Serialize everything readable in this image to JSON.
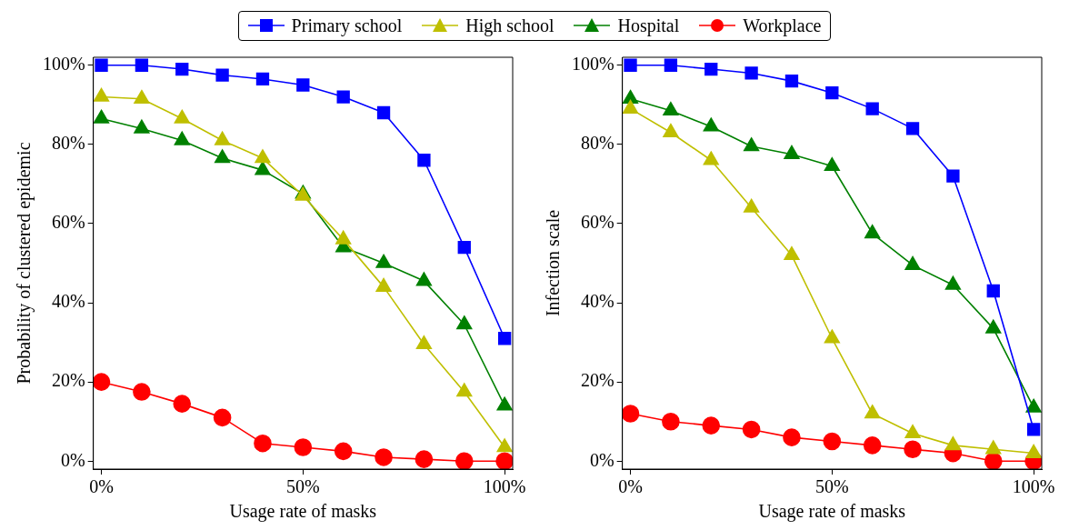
{
  "chart_data": [
    {
      "type": "line",
      "xlabel": "Usage rate of masks",
      "ylabel": "Probability of clustered epidemic",
      "x": [
        0,
        10,
        20,
        30,
        40,
        50,
        60,
        70,
        80,
        90,
        100
      ],
      "xlim": [
        -2,
        102
      ],
      "ylim": [
        -2,
        102
      ],
      "xticks": [
        {
          "value": 0,
          "label": "0%"
        },
        {
          "value": 50,
          "label": "50%"
        },
        {
          "value": 100,
          "label": "100%"
        }
      ],
      "yticks": [
        {
          "value": 0,
          "label": "0%"
        },
        {
          "value": 20,
          "label": "20%"
        },
        {
          "value": 40,
          "label": "40%"
        },
        {
          "value": 60,
          "label": "60%"
        },
        {
          "value": 80,
          "label": "80%"
        },
        {
          "value": 100,
          "label": "100%"
        }
      ],
      "grid": false,
      "legend": "top",
      "series": [
        {
          "name": "Primary school",
          "color": "#0000ff",
          "marker": "square",
          "values": [
            100,
            100,
            99,
            97.5,
            96.5,
            95,
            92,
            88,
            76,
            54,
            31
          ]
        },
        {
          "name": "High school",
          "color": "#bfbf00",
          "marker": "triangle",
          "values": [
            92,
            91.5,
            86.5,
            81,
            76.5,
            67,
            56,
            44,
            29.5,
            17.5,
            3.5
          ]
        },
        {
          "name": "Hospital",
          "color": "#008000",
          "marker": "triangle",
          "values": [
            86.5,
            84,
            81,
            76.5,
            73.5,
            67.5,
            54,
            50,
            45.5,
            34.5,
            14
          ]
        },
        {
          "name": "Workplace",
          "color": "#ff0000",
          "marker": "circle",
          "values": [
            20,
            17.5,
            14.5,
            11,
            4.5,
            3.5,
            2.5,
            1,
            0.5,
            0,
            0
          ]
        }
      ]
    },
    {
      "type": "line",
      "xlabel": "Usage rate of masks",
      "ylabel": "Infection scale",
      "x": [
        0,
        10,
        20,
        30,
        40,
        50,
        60,
        70,
        80,
        90,
        100
      ],
      "xlim": [
        -2,
        102
      ],
      "ylim": [
        -2,
        102
      ],
      "xticks": [
        {
          "value": 0,
          "label": "0%"
        },
        {
          "value": 50,
          "label": "50%"
        },
        {
          "value": 100,
          "label": "100%"
        }
      ],
      "yticks": [
        {
          "value": 0,
          "label": "0%"
        },
        {
          "value": 20,
          "label": "20%"
        },
        {
          "value": 40,
          "label": "40%"
        },
        {
          "value": 60,
          "label": "60%"
        },
        {
          "value": 80,
          "label": "80%"
        },
        {
          "value": 100,
          "label": "100%"
        }
      ],
      "grid": false,
      "series": [
        {
          "color": "#0000ff",
          "marker": "square",
          "values": [
            100,
            100,
            99,
            98,
            96,
            93,
            89,
            84,
            72,
            43,
            8
          ]
        },
        {
          "color": "#bfbf00",
          "marker": "triangle",
          "values": [
            89,
            83,
            76,
            64,
            52,
            31,
            12,
            7,
            4,
            3,
            2
          ]
        },
        {
          "color": "#008000",
          "marker": "triangle",
          "values": [
            91.5,
            88.5,
            84.5,
            79.5,
            77.5,
            74.5,
            57.5,
            49.5,
            44.5,
            33.5,
            13.5
          ]
        },
        {
          "color": "#ff0000",
          "marker": "circle",
          "values": [
            12,
            10,
            9,
            8,
            6,
            5,
            4,
            3,
            2,
            0,
            0
          ]
        }
      ]
    }
  ]
}
